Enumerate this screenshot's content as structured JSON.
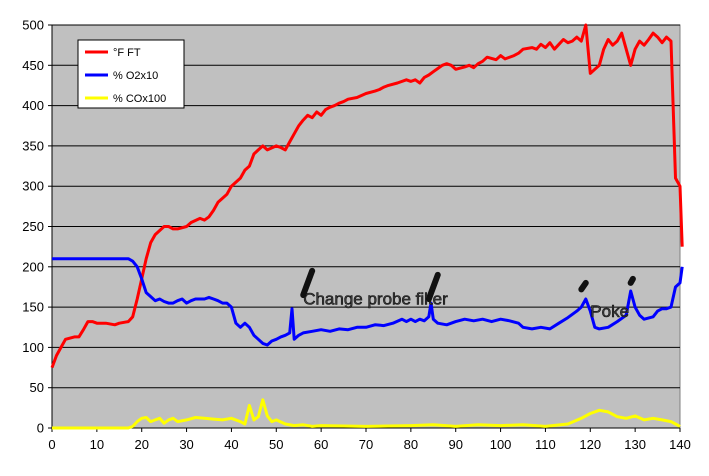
{
  "chart_data": {
    "type": "line",
    "title": "",
    "xlabel": "",
    "ylabel": "",
    "xlim": [
      0,
      140
    ],
    "ylim": [
      0,
      500
    ],
    "x_ticks": [
      0,
      10,
      20,
      30,
      40,
      50,
      60,
      70,
      80,
      90,
      100,
      110,
      120,
      130,
      140
    ],
    "y_ticks": [
      0,
      50,
      100,
      150,
      200,
      250,
      300,
      350,
      400,
      450,
      500
    ],
    "grid": true,
    "legend_position": "top-left",
    "plot_background": "#c0c0c0",
    "series": [
      {
        "name": "°F FT",
        "color": "#ff0000",
        "points": [
          [
            0,
            75
          ],
          [
            1,
            90
          ],
          [
            2,
            100
          ],
          [
            3,
            110
          ],
          [
            5,
            113
          ],
          [
            6,
            113
          ],
          [
            7,
            122
          ],
          [
            8,
            132
          ],
          [
            9,
            132
          ],
          [
            10,
            130
          ],
          [
            12,
            130
          ],
          [
            14,
            128
          ],
          [
            15,
            130
          ],
          [
            17,
            132
          ],
          [
            18,
            138
          ],
          [
            19,
            160
          ],
          [
            20,
            185
          ],
          [
            21,
            210
          ],
          [
            22,
            230
          ],
          [
            23,
            240
          ],
          [
            24,
            245
          ],
          [
            25,
            250
          ],
          [
            26,
            250
          ],
          [
            27,
            247
          ],
          [
            28,
            247
          ],
          [
            30,
            250
          ],
          [
            31,
            255
          ],
          [
            33,
            260
          ],
          [
            34,
            258
          ],
          [
            35,
            262
          ],
          [
            36,
            270
          ],
          [
            37,
            280
          ],
          [
            38,
            285
          ],
          [
            39,
            290
          ],
          [
            40,
            300
          ],
          [
            42,
            310
          ],
          [
            43,
            320
          ],
          [
            44,
            325
          ],
          [
            45,
            340
          ],
          [
            46,
            345
          ],
          [
            47,
            350
          ],
          [
            48,
            345
          ],
          [
            50,
            350
          ],
          [
            51,
            348
          ],
          [
            52,
            345
          ],
          [
            53,
            355
          ],
          [
            54,
            365
          ],
          [
            55,
            375
          ],
          [
            56,
            382
          ],
          [
            57,
            388
          ],
          [
            58,
            385
          ],
          [
            59,
            392
          ],
          [
            60,
            388
          ],
          [
            61,
            395
          ],
          [
            62,
            398
          ],
          [
            63,
            400
          ],
          [
            64,
            403
          ],
          [
            65,
            405
          ],
          [
            66,
            408
          ],
          [
            68,
            410
          ],
          [
            70,
            415
          ],
          [
            72,
            418
          ],
          [
            73,
            420
          ],
          [
            74,
            423
          ],
          [
            75,
            425
          ],
          [
            77,
            428
          ],
          [
            79,
            432
          ],
          [
            80,
            430
          ],
          [
            81,
            432
          ],
          [
            82,
            428
          ],
          [
            83,
            435
          ],
          [
            84,
            438
          ],
          [
            85,
            442
          ],
          [
            86,
            446
          ],
          [
            87,
            450
          ],
          [
            88,
            452
          ],
          [
            89,
            450
          ],
          [
            90,
            445
          ],
          [
            92,
            448
          ],
          [
            93,
            450
          ],
          [
            94,
            447
          ],
          [
            95,
            452
          ],
          [
            96,
            455
          ],
          [
            97,
            460
          ],
          [
            99,
            457
          ],
          [
            100,
            462
          ],
          [
            101,
            458
          ],
          [
            103,
            462
          ],
          [
            104,
            465
          ],
          [
            105,
            470
          ],
          [
            107,
            472
          ],
          [
            108,
            470
          ],
          [
            109,
            476
          ],
          [
            110,
            472
          ],
          [
            111,
            478
          ],
          [
            112,
            470
          ],
          [
            113,
            476
          ],
          [
            114,
            482
          ],
          [
            115,
            478
          ],
          [
            116,
            480
          ],
          [
            117,
            485
          ],
          [
            118,
            480
          ],
          [
            119,
            500
          ],
          [
            120,
            440
          ],
          [
            121,
            445
          ],
          [
            122,
            450
          ],
          [
            123,
            470
          ],
          [
            124,
            482
          ],
          [
            125,
            475
          ],
          [
            126,
            480
          ],
          [
            127,
            490
          ],
          [
            128,
            470
          ],
          [
            129,
            450
          ],
          [
            130,
            470
          ],
          [
            131,
            480
          ],
          [
            132,
            475
          ],
          [
            133,
            482
          ],
          [
            134,
            490
          ],
          [
            135,
            485
          ],
          [
            136,
            478
          ],
          [
            137,
            485
          ],
          [
            138,
            480
          ],
          [
            139,
            310
          ],
          [
            140,
            300
          ],
          [
            140.5,
            225
          ]
        ]
      },
      {
        "name": "% O2x10",
        "color": "#0000ff",
        "points": [
          [
            0,
            210
          ],
          [
            3,
            210
          ],
          [
            17,
            210
          ],
          [
            18,
            207
          ],
          [
            19,
            200
          ],
          [
            20,
            185
          ],
          [
            21,
            168
          ],
          [
            22,
            163
          ],
          [
            23,
            158
          ],
          [
            24,
            160
          ],
          [
            25,
            157
          ],
          [
            26,
            155
          ],
          [
            27,
            155
          ],
          [
            28,
            158
          ],
          [
            29,
            160
          ],
          [
            30,
            155
          ],
          [
            31,
            158
          ],
          [
            32,
            160
          ],
          [
            34,
            160
          ],
          [
            35,
            162
          ],
          [
            36,
            160
          ],
          [
            37,
            158
          ],
          [
            38,
            155
          ],
          [
            39,
            155
          ],
          [
            40,
            150
          ],
          [
            41,
            130
          ],
          [
            42,
            125
          ],
          [
            43,
            130
          ],
          [
            44,
            125
          ],
          [
            45,
            115
          ],
          [
            46,
            110
          ],
          [
            47,
            105
          ],
          [
            48,
            103
          ],
          [
            49,
            108
          ],
          [
            50,
            110
          ],
          [
            51,
            113
          ],
          [
            52,
            115
          ],
          [
            53,
            118
          ],
          [
            53.5,
            148
          ],
          [
            54,
            110
          ],
          [
            55,
            115
          ],
          [
            56,
            118
          ],
          [
            58,
            120
          ],
          [
            60,
            122
          ],
          [
            62,
            120
          ],
          [
            64,
            123
          ],
          [
            66,
            122
          ],
          [
            68,
            125
          ],
          [
            70,
            125
          ],
          [
            72,
            128
          ],
          [
            74,
            127
          ],
          [
            76,
            130
          ],
          [
            78,
            135
          ],
          [
            79,
            132
          ],
          [
            80,
            135
          ],
          [
            81,
            132
          ],
          [
            82,
            135
          ],
          [
            83,
            133
          ],
          [
            84,
            138
          ],
          [
            84.5,
            155
          ],
          [
            85,
            135
          ],
          [
            86,
            130
          ],
          [
            88,
            128
          ],
          [
            90,
            132
          ],
          [
            92,
            135
          ],
          [
            94,
            133
          ],
          [
            96,
            135
          ],
          [
            98,
            132
          ],
          [
            100,
            135
          ],
          [
            102,
            133
          ],
          [
            104,
            130
          ],
          [
            105,
            125
          ],
          [
            107,
            123
          ],
          [
            109,
            125
          ],
          [
            111,
            123
          ],
          [
            113,
            130
          ],
          [
            115,
            137
          ],
          [
            117,
            145
          ],
          [
            118,
            150
          ],
          [
            119,
            160
          ],
          [
            120,
            145
          ],
          [
            121,
            125
          ],
          [
            122,
            123
          ],
          [
            124,
            125
          ],
          [
            126,
            132
          ],
          [
            128,
            140
          ],
          [
            129,
            170
          ],
          [
            130,
            150
          ],
          [
            131,
            140
          ],
          [
            132,
            135
          ],
          [
            134,
            138
          ],
          [
            135,
            145
          ],
          [
            136,
            148
          ],
          [
            137,
            148
          ],
          [
            138,
            150
          ],
          [
            139,
            175
          ],
          [
            140,
            180
          ],
          [
            140.5,
            200
          ]
        ]
      },
      {
        "name": "% COx100",
        "color": "#ffff00",
        "points": [
          [
            0,
            0
          ],
          [
            17,
            0
          ],
          [
            18,
            2
          ],
          [
            19,
            8
          ],
          [
            20,
            12
          ],
          [
            21,
            13
          ],
          [
            22,
            8
          ],
          [
            23,
            10
          ],
          [
            24,
            12
          ],
          [
            25,
            6
          ],
          [
            26,
            10
          ],
          [
            27,
            12
          ],
          [
            28,
            8
          ],
          [
            30,
            10
          ],
          [
            32,
            13
          ],
          [
            34,
            12
          ],
          [
            36,
            11
          ],
          [
            38,
            10
          ],
          [
            40,
            12
          ],
          [
            42,
            8
          ],
          [
            43,
            5
          ],
          [
            44,
            28
          ],
          [
            45,
            10
          ],
          [
            46,
            14
          ],
          [
            47,
            35
          ],
          [
            48,
            15
          ],
          [
            49,
            8
          ],
          [
            50,
            10
          ],
          [
            52,
            5
          ],
          [
            54,
            3
          ],
          [
            56,
            4
          ],
          [
            58,
            2
          ],
          [
            60,
            3
          ],
          [
            70,
            2
          ],
          [
            80,
            3
          ],
          [
            85,
            4
          ],
          [
            90,
            2
          ],
          [
            95,
            4
          ],
          [
            100,
            3
          ],
          [
            105,
            4
          ],
          [
            110,
            2
          ],
          [
            115,
            5
          ],
          [
            118,
            12
          ],
          [
            120,
            18
          ],
          [
            122,
            22
          ],
          [
            124,
            20
          ],
          [
            126,
            14
          ],
          [
            128,
            12
          ],
          [
            130,
            15
          ],
          [
            132,
            10
          ],
          [
            134,
            12
          ],
          [
            136,
            10
          ],
          [
            138,
            8
          ],
          [
            139,
            5
          ],
          [
            140,
            2
          ]
        ]
      }
    ],
    "annotations": [
      {
        "text": "Change probe filter",
        "x": 56,
        "y": 210
      },
      {
        "text": "Poke",
        "x": 120,
        "y": 195
      }
    ]
  }
}
